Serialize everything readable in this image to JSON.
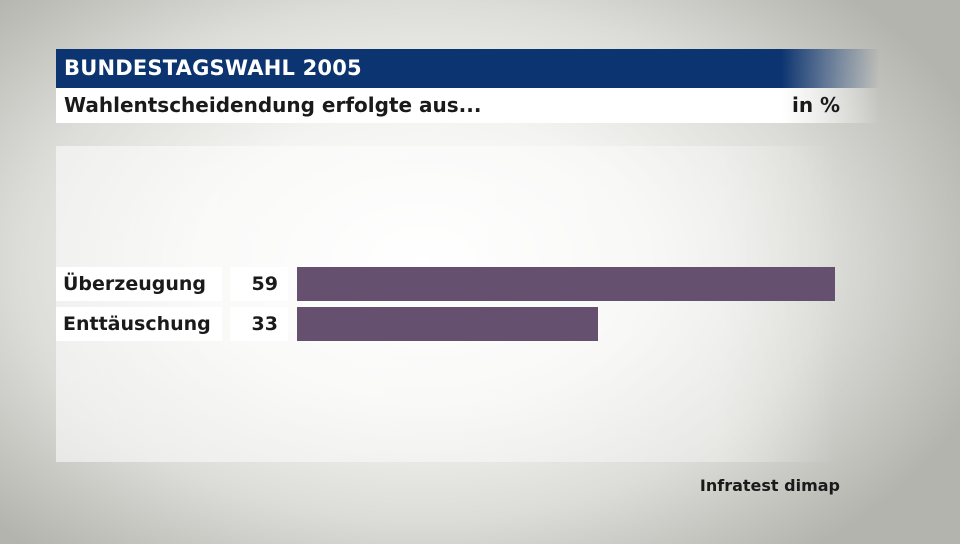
{
  "header": {
    "title": "BUNDESTAGSWAHL 2005",
    "subtitle": "Wahlentscheidendung erfolgte aus...",
    "unit": "in %"
  },
  "chart_data": {
    "type": "bar",
    "orientation": "horizontal",
    "categories": [
      "Überzeugung",
      "Enttäuschung"
    ],
    "values": [
      59,
      33
    ],
    "value_labels": [
      "59",
      "33"
    ],
    "xlim": [
      0,
      59
    ],
    "grid": false,
    "legend": "none",
    "bar_color": "#65506f"
  },
  "source": "Infratest dimap"
}
